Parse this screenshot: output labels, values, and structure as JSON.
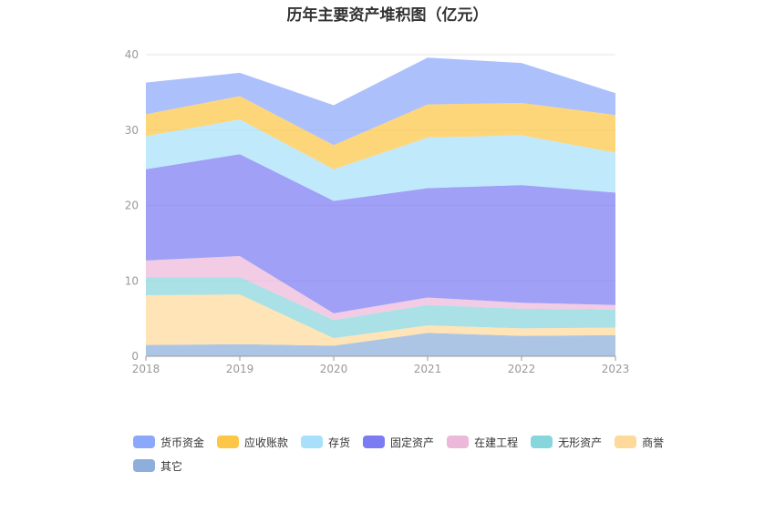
{
  "chart_data": {
    "type": "area",
    "stacked": true,
    "title": "历年主要资产堆积图（亿元）",
    "x": [
      "2018",
      "2019",
      "2020",
      "2021",
      "2022",
      "2023"
    ],
    "ylim": [
      0,
      40
    ],
    "yticks": [
      0,
      10,
      20,
      30,
      40
    ],
    "grid": true,
    "legend_position": "bottom",
    "series": [
      {
        "name": "其它",
        "color": "#8eaedb",
        "values": [
          1.5,
          1.6,
          1.4,
          3.1,
          2.7,
          2.8
        ]
      },
      {
        "name": "商誉",
        "color": "#fdd99a",
        "values": [
          6.6,
          6.6,
          1.0,
          1.0,
          1.0,
          1.0
        ]
      },
      {
        "name": "无形资产",
        "color": "#88d6dd",
        "values": [
          2.4,
          2.3,
          2.4,
          2.7,
          2.6,
          2.4
        ]
      },
      {
        "name": "在建工程",
        "color": "#ebb8d9",
        "values": [
          2.2,
          2.8,
          0.9,
          1.0,
          0.8,
          0.6
        ]
      },
      {
        "name": "固定资产",
        "color": "#7b7bf2",
        "values": [
          12.1,
          13.5,
          14.9,
          14.5,
          15.6,
          14.9
        ]
      },
      {
        "name": "存货",
        "color": "#a8e0fb",
        "values": [
          4.4,
          4.6,
          4.2,
          6.7,
          6.6,
          5.3
        ]
      },
      {
        "name": "应收账款",
        "color": "#fdc646",
        "values": [
          2.9,
          3.1,
          3.2,
          4.4,
          4.3,
          5.0
        ]
      },
      {
        "name": "货币资金",
        "color": "#8ca8fb",
        "values": [
          4.2,
          3.1,
          5.3,
          6.2,
          5.3,
          2.9
        ]
      }
    ]
  },
  "legend": [
    {
      "name": "货币资金",
      "color": "#8ca8fb"
    },
    {
      "name": "应收账款",
      "color": "#fdc646"
    },
    {
      "name": "存货",
      "color": "#a8e0fb"
    },
    {
      "name": "固定资产",
      "color": "#7b7bf2"
    },
    {
      "name": "在建工程",
      "color": "#ebb8d9"
    },
    {
      "name": "无形资产",
      "color": "#88d6dd"
    },
    {
      "name": "商誉",
      "color": "#fdd99a"
    },
    {
      "name": "其它",
      "color": "#8eaedb"
    }
  ]
}
